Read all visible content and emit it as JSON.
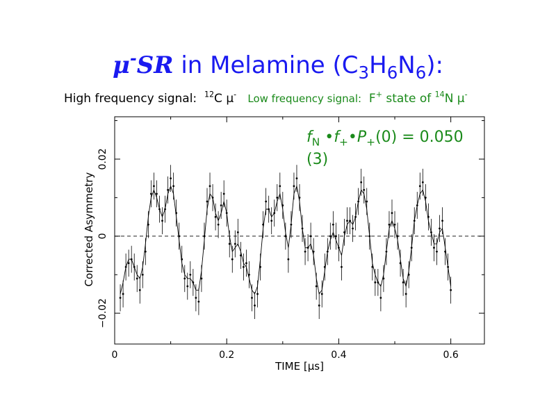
{
  "title": {
    "mu": "μ",
    "minus": "-",
    "sr": "SR",
    "rest": " in Melamine (C",
    "s3": "3",
    "h": "H",
    "s6a": "6",
    "n": "N",
    "s6b": "6",
    "end": "):"
  },
  "subtitle": {
    "high_label": "High frequency signal:",
    "high_iso": "12",
    "high_species": "C μ",
    "high_sign": "-",
    "low_label": "Low frequency signal:",
    "low_state": "F",
    "low_state_sup": "+",
    "low_state_text": " state of ",
    "low_iso": "14",
    "low_species": "N μ",
    "low_sign": "-"
  },
  "annotation": {
    "f": "f",
    "fsub": "N",
    "dot1": " •",
    "f2": "f",
    "f2sub": "+",
    "dot2": "•",
    "p": "P",
    "psub": "+",
    "rest": "(0) = 0.050",
    "line2": "(3)"
  },
  "colors": {
    "title": "#1a1af0",
    "green": "#1a8a1a",
    "data": "#000000"
  },
  "chart_data": {
    "type": "scatter",
    "xlabel": "TIME [μs]",
    "ylabel": "Corrected Asymmetry",
    "xlim": [
      0,
      0.66
    ],
    "ylim": [
      -0.028,
      0.031
    ],
    "x_ticks": [
      0,
      0.2,
      0.4,
      0.6
    ],
    "x_tick_labels": [
      "0",
      "0.2",
      "0.4",
      "0.6"
    ],
    "y_ticks": [
      -0.02,
      0,
      0.02
    ],
    "y_tick_labels": [
      "−0.02",
      "0",
      "0.02"
    ],
    "zero_line": "dashed",
    "series": [
      {
        "kind": "data-points-with-error-bars",
        "x": [
          0.01,
          0.015,
          0.02,
          0.025,
          0.03,
          0.035,
          0.04,
          0.045,
          0.05,
          0.055,
          0.06,
          0.065,
          0.07,
          0.075,
          0.08,
          0.085,
          0.09,
          0.095,
          0.1,
          0.105,
          0.11,
          0.115,
          0.12,
          0.125,
          0.13,
          0.135,
          0.14,
          0.145,
          0.15,
          0.155,
          0.16,
          0.165,
          0.17,
          0.175,
          0.18,
          0.185,
          0.19,
          0.195,
          0.2,
          0.205,
          0.21,
          0.215,
          0.22,
          0.225,
          0.23,
          0.235,
          0.24,
          0.245,
          0.25,
          0.255,
          0.26,
          0.265,
          0.27,
          0.275,
          0.28,
          0.285,
          0.29,
          0.295,
          0.3,
          0.305,
          0.31,
          0.315,
          0.32,
          0.325,
          0.33,
          0.335,
          0.34,
          0.345,
          0.35,
          0.355,
          0.36,
          0.365,
          0.37,
          0.375,
          0.38,
          0.385,
          0.39,
          0.395,
          0.4,
          0.405,
          0.41,
          0.415,
          0.42,
          0.425,
          0.43,
          0.435,
          0.44,
          0.445,
          0.45,
          0.455,
          0.46,
          0.465,
          0.47,
          0.475,
          0.48,
          0.485,
          0.49,
          0.495,
          0.5,
          0.505,
          0.51,
          0.515,
          0.52,
          0.525,
          0.53,
          0.535,
          0.54,
          0.545,
          0.55,
          0.555,
          0.56,
          0.565,
          0.57,
          0.575,
          0.58,
          0.585,
          0.59,
          0.595,
          0.6
        ],
        "y": [
          -0.016,
          -0.015,
          -0.008,
          -0.007,
          -0.006,
          -0.008,
          -0.011,
          -0.014,
          -0.01,
          -0.004,
          0.003,
          0.011,
          0.013,
          0.011,
          0.007,
          0.004,
          0.007,
          0.012,
          0.015,
          0.013,
          0.006,
          0.0,
          -0.006,
          -0.011,
          -0.013,
          -0.01,
          -0.012,
          -0.016,
          -0.017,
          -0.011,
          0.0,
          0.009,
          0.013,
          0.01,
          0.005,
          0.003,
          0.008,
          0.011,
          0.006,
          -0.002,
          -0.006,
          -0.002,
          0.001,
          -0.005,
          -0.008,
          -0.007,
          -0.01,
          -0.016,
          -0.018,
          -0.015,
          -0.008,
          0.003,
          0.009,
          0.007,
          0.004,
          0.006,
          0.01,
          0.013,
          0.008,
          0.0,
          -0.006,
          0.003,
          0.013,
          0.015,
          0.01,
          0.002,
          -0.004,
          -0.003,
          0.0,
          -0.004,
          -0.013,
          -0.018,
          -0.015,
          -0.008,
          -0.004,
          0.0,
          0.003,
          0.0,
          -0.003,
          -0.008,
          0.001,
          0.004,
          0.004,
          0.002,
          0.005,
          0.009,
          0.014,
          0.012,
          0.009,
          0.0,
          -0.008,
          -0.012,
          -0.012,
          -0.016,
          -0.011,
          -0.004,
          0.003,
          0.006,
          0.003,
          0.0,
          -0.007,
          -0.012,
          -0.015,
          -0.01,
          -0.003,
          0.004,
          0.008,
          0.013,
          0.014,
          0.01,
          0.005,
          0.001,
          -0.003,
          -0.004,
          0.002,
          0.004,
          -0.004,
          -0.008,
          -0.014
        ],
        "error": 0.0035
      },
      {
        "kind": "fit-curve",
        "x": [
          0.01,
          0.015,
          0.02,
          0.025,
          0.03,
          0.035,
          0.04,
          0.045,
          0.05,
          0.055,
          0.06,
          0.065,
          0.07,
          0.075,
          0.08,
          0.085,
          0.09,
          0.095,
          0.1,
          0.105,
          0.11,
          0.115,
          0.12,
          0.125,
          0.13,
          0.135,
          0.14,
          0.145,
          0.15,
          0.155,
          0.16,
          0.165,
          0.17,
          0.175,
          0.18,
          0.185,
          0.19,
          0.195,
          0.2,
          0.205,
          0.21,
          0.215,
          0.22,
          0.225,
          0.23,
          0.235,
          0.24,
          0.245,
          0.25,
          0.255,
          0.26,
          0.265,
          0.27,
          0.275,
          0.28,
          0.285,
          0.29,
          0.295,
          0.3,
          0.305,
          0.31,
          0.315,
          0.32,
          0.325,
          0.33,
          0.335,
          0.34,
          0.345,
          0.35,
          0.355,
          0.36,
          0.365,
          0.37,
          0.375,
          0.38,
          0.385,
          0.39,
          0.395,
          0.4,
          0.405,
          0.41,
          0.415,
          0.42,
          0.425,
          0.43,
          0.435,
          0.44,
          0.445,
          0.45,
          0.455,
          0.46,
          0.465,
          0.47,
          0.475,
          0.48,
          0.485,
          0.49,
          0.495,
          0.5,
          0.505,
          0.51,
          0.515,
          0.52,
          0.525,
          0.53,
          0.535,
          0.54,
          0.545,
          0.55,
          0.555,
          0.56,
          0.565,
          0.57,
          0.575,
          0.58,
          0.585,
          0.59,
          0.595,
          0.6
        ],
        "y": [
          -0.015,
          -0.012,
          -0.008,
          -0.006,
          -0.006,
          -0.008,
          -0.01,
          -0.011,
          -0.008,
          -0.002,
          0.005,
          0.01,
          0.012,
          0.01,
          0.007,
          0.005,
          0.007,
          0.011,
          0.013,
          0.011,
          0.005,
          -0.001,
          -0.007,
          -0.01,
          -0.011,
          -0.011,
          -0.012,
          -0.014,
          -0.014,
          -0.009,
          -0.001,
          0.007,
          0.011,
          0.01,
          0.006,
          0.004,
          0.006,
          0.009,
          0.006,
          0.0,
          -0.004,
          -0.003,
          -0.002,
          -0.004,
          -0.007,
          -0.008,
          -0.011,
          -0.014,
          -0.015,
          -0.013,
          -0.006,
          0.002,
          0.007,
          0.007,
          0.005,
          0.006,
          0.009,
          0.011,
          0.007,
          0.001,
          -0.003,
          0.003,
          0.011,
          0.013,
          0.009,
          0.002,
          -0.003,
          -0.003,
          -0.002,
          -0.005,
          -0.011,
          -0.015,
          -0.014,
          -0.009,
          -0.004,
          -0.001,
          0.001,
          -0.001,
          -0.003,
          -0.005,
          0.0,
          0.003,
          0.004,
          0.003,
          0.005,
          0.009,
          0.012,
          0.011,
          0.007,
          0.0,
          -0.007,
          -0.01,
          -0.012,
          -0.013,
          -0.01,
          -0.004,
          0.002,
          0.004,
          0.002,
          -0.001,
          -0.006,
          -0.011,
          -0.013,
          -0.009,
          -0.003,
          0.004,
          0.008,
          0.011,
          0.012,
          0.009,
          0.004,
          0.001,
          -0.002,
          -0.002,
          0.001,
          0.002,
          -0.003,
          -0.008,
          -0.013
        ]
      }
    ]
  }
}
